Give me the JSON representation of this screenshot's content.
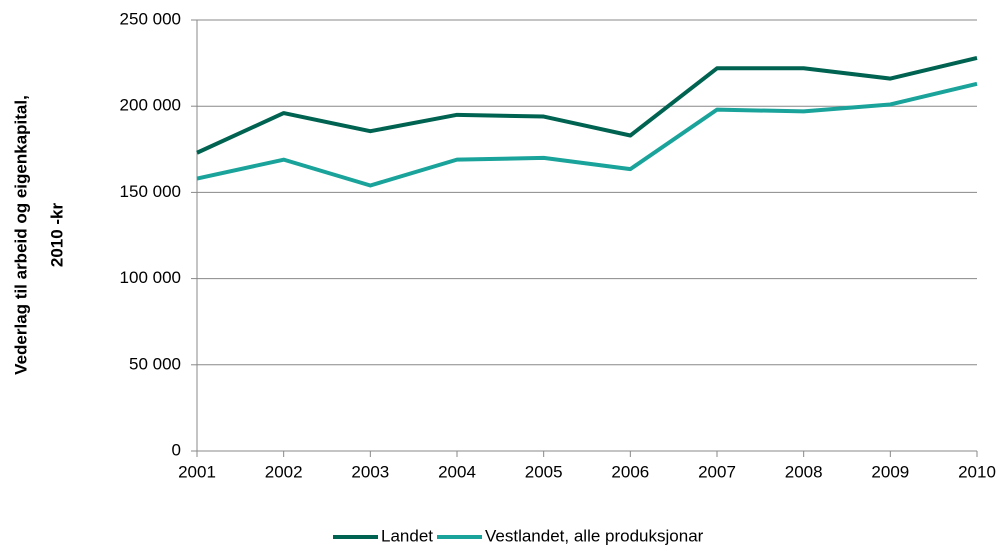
{
  "chart_data": {
    "type": "line",
    "ylabel": [
      "Vederlag til arbeid og eigenkapital,",
      "2010 -kr"
    ],
    "x": [
      2001,
      2002,
      2003,
      2004,
      2005,
      2006,
      2007,
      2008,
      2009,
      2010
    ],
    "xlim": [
      2001,
      2010
    ],
    "xticks": [
      2001,
      2002,
      2003,
      2004,
      2005,
      2006,
      2007,
      2008,
      2009,
      2010
    ],
    "ylim": [
      0,
      250000
    ],
    "yticks": [
      {
        "value": 0,
        "label": "0"
      },
      {
        "value": 50000,
        "label": "50 000"
      },
      {
        "value": 100000,
        "label": "100 000"
      },
      {
        "value": 150000,
        "label": "150 000"
      },
      {
        "value": 200000,
        "label": "200 000"
      },
      {
        "value": 250000,
        "label": "250 000"
      }
    ],
    "grid": true,
    "legend": "bottom",
    "series": [
      {
        "name": "Landet",
        "color": "#006351",
        "values": [
          173000,
          196000,
          185500,
          195000,
          194000,
          183000,
          222000,
          222000,
          216000,
          228000
        ]
      },
      {
        "name": "Vestlandet, alle produksjonar",
        "color": "#1aa39a",
        "values": [
          158000,
          169000,
          154000,
          169000,
          170000,
          163500,
          198000,
          197000,
          201000,
          213000
        ]
      }
    ]
  }
}
